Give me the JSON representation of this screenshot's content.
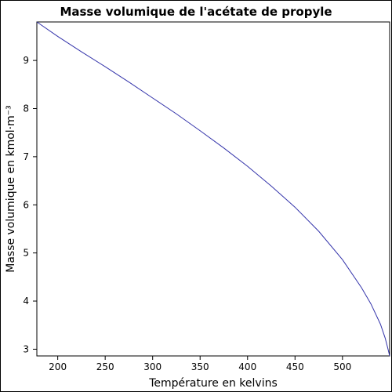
{
  "chart_data": {
    "type": "line",
    "title": "Masse volumique de l'acétate de propyle",
    "xlabel": "Température en kelvins",
    "ylabel": "Masse volumique en kmol·m⁻³",
    "xlim": [
      178,
      549.7
    ],
    "ylim": [
      2.86,
      9.8
    ],
    "xticks": [
      200,
      250,
      300,
      350,
      400,
      450,
      500
    ],
    "yticks": [
      3,
      4,
      5,
      6,
      7,
      8,
      9
    ],
    "grid": false,
    "series": [
      {
        "color": "#3333aa",
        "x": [
          178,
          200,
          225,
          250,
          275,
          300,
          325,
          350,
          375,
          400,
          425,
          450,
          475,
          500,
          520,
          530,
          540,
          545,
          548,
          549.7
        ],
        "y": [
          9.8,
          9.5,
          9.18,
          8.87,
          8.55,
          8.22,
          7.89,
          7.54,
          7.18,
          6.8,
          6.39,
          5.95,
          5.45,
          4.86,
          4.28,
          3.94,
          3.52,
          3.23,
          3.0,
          2.86
        ]
      }
    ]
  }
}
